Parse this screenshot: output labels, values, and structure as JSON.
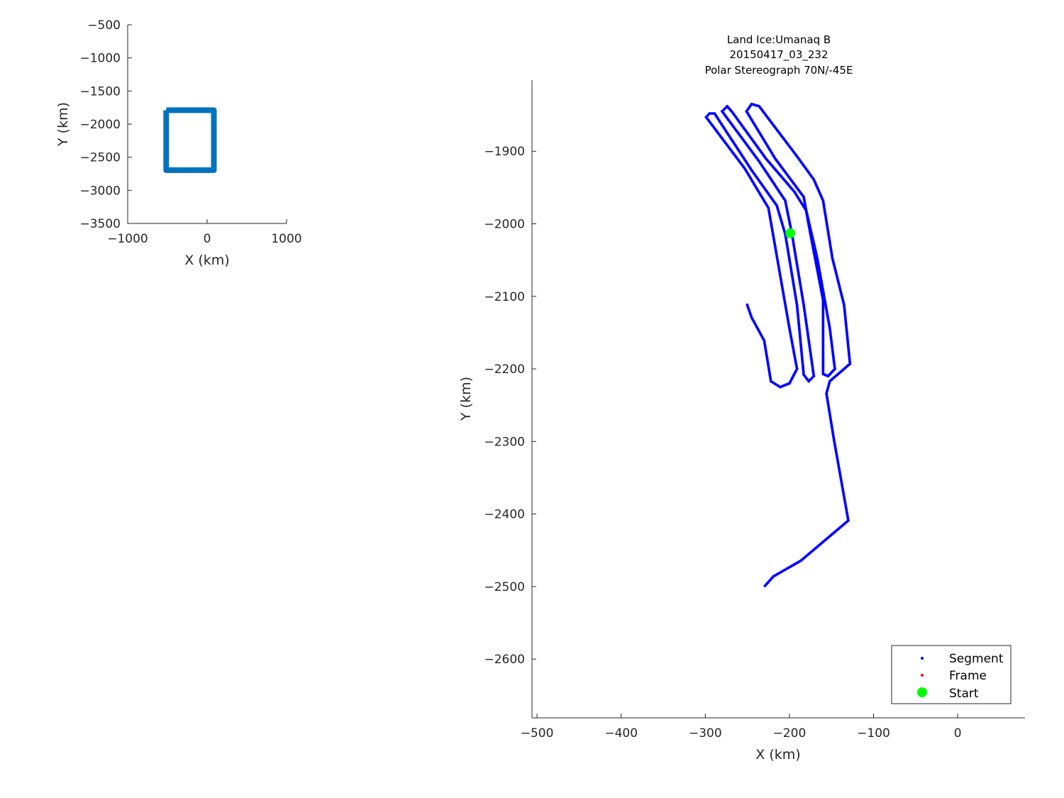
{
  "chart_data": [
    {
      "type": "line",
      "xlabel": "X (km)",
      "ylabel": "Y (km)",
      "xlim": [
        -1000,
        1000
      ],
      "ylim": [
        -3500,
        -500
      ],
      "xticks": [
        -1000,
        0,
        1000
      ],
      "yticks": [
        -500,
        -1000,
        -1500,
        -2000,
        -2500,
        -3000,
        -3500
      ],
      "grid": false,
      "color": "#0072BD",
      "series": [
        {
          "x": [
            -515,
            85,
            85,
            -515,
            -515
          ],
          "y": [
            -1790,
            -1790,
            -2695,
            -2695,
            -1790
          ]
        }
      ]
    },
    {
      "type": "scatter",
      "title": [
        "Land Ice:Umanaq B",
        "20150417_03_232",
        "Polar Stereograph 70N/-45E"
      ],
      "xlabel": "X (km)",
      "ylabel": "Y (km)",
      "xlim": [
        -506,
        80
      ],
      "ylim": [
        -2681,
        -1802
      ],
      "xticks": [
        -500,
        -400,
        -300,
        -200,
        -100,
        0
      ],
      "yticks": [
        -1900,
        -2000,
        -2100,
        -2200,
        -2300,
        -2400,
        -2500,
        -2600
      ],
      "grid": false,
      "legend": {
        "placement": "bottom-right",
        "entries": [
          "Segment",
          "Frame",
          "Start"
        ]
      },
      "colors": {
        "segment": "#0000FF",
        "frame": "#FF0000",
        "start": "#00FF00"
      },
      "series": [
        {
          "name": "Segment",
          "x": [
            -229,
            -219,
            -186,
            -130,
            -147,
            -156,
            -152,
            -128,
            -135,
            -149,
            -160,
            -171,
            -191,
            -236,
            -245,
            -251,
            -217,
            -183,
            -177,
            -160,
            -160,
            -154,
            -146,
            -152,
            -167,
            -180,
            -194,
            -228,
            -268,
            -274,
            -280,
            -236,
            -205,
            -197,
            -183,
            -171,
            -177,
            -183,
            -191,
            -205,
            -215,
            -245,
            -289,
            -295,
            -299,
            -253,
            -225,
            -200,
            -191,
            -200,
            -211,
            -222,
            -230,
            -245,
            -251
          ],
          "y": [
            -2499,
            -2486,
            -2464,
            -2409,
            -2298,
            -2234,
            -2217,
            -2193,
            -2112,
            -2047,
            -1968,
            -1939,
            -1907,
            -1838,
            -1835,
            -1845,
            -1910,
            -1963,
            -2002,
            -2105,
            -2207,
            -2210,
            -2200,
            -2144,
            -2047,
            -1982,
            -1956,
            -1910,
            -1846,
            -1838,
            -1845,
            -1914,
            -1968,
            -2014,
            -2112,
            -2210,
            -2217,
            -2208,
            -2112,
            -2014,
            -1975,
            -1926,
            -1848,
            -1848,
            -1853,
            -1924,
            -1978,
            -2144,
            -2200,
            -2220,
            -2225,
            -2217,
            -2161,
            -2129,
            -2109
          ]
        },
        {
          "name": "Frame",
          "x": [],
          "y": []
        },
        {
          "name": "Start",
          "x": [
            -199
          ],
          "y": [
            -2013
          ]
        }
      ]
    }
  ]
}
